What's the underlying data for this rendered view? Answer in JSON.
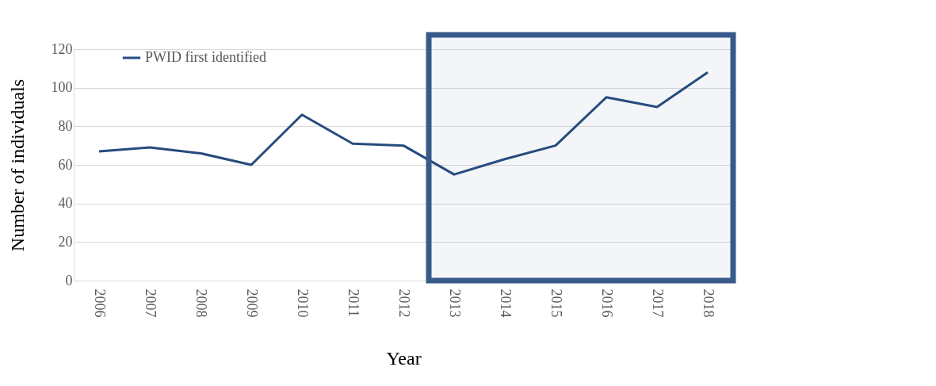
{
  "chart_data": {
    "type": "line",
    "xlabel": "Year",
    "ylabel": "Number of individuals",
    "categories": [
      "2006",
      "2007",
      "2008",
      "2009",
      "2010",
      "2011",
      "2012",
      "2013",
      "2014",
      "2015",
      "2016",
      "2017",
      "2018"
    ],
    "series": [
      {
        "name": "PWID first identified",
        "color": "#264b7d",
        "values": [
          67,
          69,
          66,
          60,
          86,
          71,
          70,
          55,
          63,
          70,
          95,
          90,
          108
        ]
      }
    ],
    "ylim": [
      0,
      120
    ],
    "yticks": [
      0,
      20,
      40,
      60,
      80,
      100,
      120
    ],
    "grid": "y",
    "legend": "top left",
    "marker": "none",
    "line_style": "solid",
    "bands": [
      {
        "axis": "x",
        "from": "2013",
        "to": "2018",
        "color": "#375a8a"
      }
    ]
  }
}
